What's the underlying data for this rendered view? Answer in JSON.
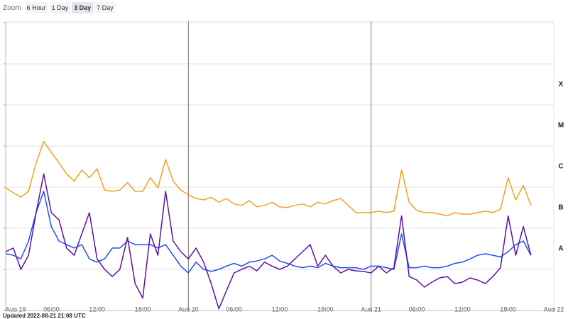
{
  "zoom": {
    "label": "Zoom",
    "options": [
      "6 Hour",
      "1 Day",
      "3 Day",
      "7 Day"
    ],
    "selected_index": 2
  },
  "chart_data": {
    "type": "line",
    "log_scale": true,
    "grid": true,
    "xlim": [
      0,
      72
    ],
    "xticks": [
      {
        "value": 0,
        "label": "Aug 19"
      },
      {
        "value": 6,
        "label": "06:00"
      },
      {
        "value": 12,
        "label": "12:00"
      },
      {
        "value": 18,
        "label": "18:00"
      },
      {
        "value": 24,
        "label": "Aug 20"
      },
      {
        "value": 30,
        "label": "06:00"
      },
      {
        "value": 36,
        "label": "12:00"
      },
      {
        "value": 42,
        "label": "18:00"
      },
      {
        "value": 48,
        "label": "Aug 21"
      },
      {
        "value": 54,
        "label": "06:00"
      },
      {
        "value": 60,
        "label": "12:00"
      },
      {
        "value": 66,
        "label": "18:00"
      },
      {
        "value": 72,
        "label": "Aug 22"
      }
    ],
    "ylim": [
      1e-09,
      0.01
    ],
    "yticks": [
      1e-09,
      1e-08,
      1e-07,
      1e-06,
      1e-05,
      0.0001,
      0.001,
      0.01
    ],
    "class_labels": [
      {
        "value": 0.0001,
        "label": "X"
      },
      {
        "value": 1e-05,
        "label": "M"
      },
      {
        "value": 1e-06,
        "label": "C"
      },
      {
        "value": 1e-07,
        "label": "B"
      },
      {
        "value": 1e-08,
        "label": "A"
      }
    ],
    "x": [
      0,
      1,
      2,
      3,
      4,
      5,
      6,
      7,
      8,
      9,
      10,
      11,
      12,
      13,
      14,
      15,
      16,
      17,
      18,
      19,
      20,
      21,
      22,
      23,
      24,
      25,
      26,
      27,
      28,
      29,
      30,
      31,
      32,
      33,
      34,
      35,
      36,
      37,
      38,
      39,
      40,
      41,
      42,
      43,
      44,
      45,
      46,
      47,
      48,
      49,
      50,
      51,
      52,
      53,
      54,
      55,
      56,
      57,
      58,
      59,
      60,
      61,
      62,
      63,
      64,
      65,
      66,
      67,
      68,
      69
    ],
    "series": [
      {
        "color": "#f7a01e",
        "values": [
          9.6e-07,
          7.3e-07,
          5.7e-07,
          7.9e-07,
          3.9e-06,
          1.3e-05,
          7e-06,
          3.9e-06,
          2.1e-06,
          1.4e-06,
          2.6e-06,
          1.7e-06,
          2.8e-06,
          8.5e-07,
          7.9e-07,
          8.5e-07,
          1.3e-06,
          7.9e-07,
          7.9e-07,
          1.7e-06,
          9.6e-07,
          4.7e-06,
          1.4e-06,
          8.5e-07,
          6.5e-07,
          5.3e-07,
          4.9e-07,
          5.7e-07,
          4.3e-07,
          5.3e-07,
          3.9e-07,
          3.6e-07,
          4.7e-07,
          3.3e-07,
          3.6e-07,
          4.3e-07,
          3.3e-07,
          3.2e-07,
          3.6e-07,
          3.9e-07,
          3.3e-07,
          4.3e-07,
          3.9e-07,
          4.7e-07,
          5.3e-07,
          3.6e-07,
          2.4e-07,
          2.4e-07,
          2.4e-07,
          2.6e-07,
          2.4e-07,
          2.6e-07,
          2.6e-06,
          4.3e-07,
          2.7e-07,
          2.4e-07,
          2.4e-07,
          2.2e-07,
          2e-07,
          2.4e-07,
          2.2e-07,
          2.2e-07,
          2.4e-07,
          2.6e-07,
          2.4e-07,
          2.9e-07,
          1.7e-06,
          4.9e-07,
          1.1e-06,
          3.6e-07
        ]
      },
      {
        "color": "#1f4ff0",
        "values": [
          2.4e-08,
          2.2e-08,
          1.8e-08,
          4.9e-08,
          2.4e-07,
          7.9e-07,
          1.1e-07,
          4.9e-08,
          4e-08,
          3.3e-08,
          4e-08,
          1.8e-08,
          1.5e-08,
          1.8e-08,
          3.3e-08,
          3.3e-08,
          4.9e-08,
          4e-08,
          4e-08,
          4e-08,
          3.3e-08,
          4e-08,
          2.2e-08,
          1.2e-08,
          8.2e-09,
          1.5e-08,
          1e-08,
          8.9e-09,
          1e-08,
          1.2e-08,
          1.4e-08,
          1.2e-08,
          1.5e-08,
          1.6e-08,
          1.8e-08,
          2.2e-08,
          1.6e-08,
          1.4e-08,
          1.2e-08,
          1.1e-08,
          1.2e-08,
          1.1e-08,
          1.4e-08,
          1.2e-08,
          1.1e-08,
          1.1e-08,
          1.1e-08,
          1e-08,
          1.2e-08,
          1.2e-08,
          1.1e-08,
          1e-08,
          7.3e-08,
          1.1e-08,
          1.1e-08,
          1.2e-08,
          1.1e-08,
          1.1e-08,
          1.2e-08,
          1.4e-08,
          1.5e-08,
          1.8e-08,
          2.2e-08,
          2.4e-08,
          2.2e-08,
          2e-08,
          2.7e-08,
          4e-08,
          4.9e-08,
          2.2e-08
        ]
      },
      {
        "color": "#5b12a8",
        "values": [
          2.7e-08,
          3.3e-08,
          1e-08,
          2.2e-08,
          2.4e-07,
          2.1e-06,
          2.4e-07,
          1.6e-07,
          3.3e-08,
          2.2e-08,
          7.3e-08,
          2.4e-07,
          1.8e-08,
          1e-08,
          6.7e-09,
          1e-08,
          6e-08,
          4.5e-09,
          2e-09,
          7.3e-08,
          2.2e-08,
          7.9e-07,
          4.9e-08,
          2.7e-08,
          1.8e-08,
          3.3e-08,
          1.5e-08,
          4.5e-09,
          1.1e-09,
          3e-09,
          8.2e-09,
          1e-08,
          1.2e-08,
          9.2e-09,
          1.5e-08,
          1.2e-08,
          1e-08,
          1.2e-08,
          1.8e-08,
          2.7e-08,
          4e-08,
          1.2e-08,
          2.2e-08,
          1.2e-08,
          8.2e-09,
          1e-08,
          9.2e-09,
          8.9e-09,
          8.2e-09,
          1.2e-08,
          8.2e-09,
          1.1e-08,
          2e-07,
          6.7e-09,
          5.5e-09,
          3.7e-09,
          4.9e-09,
          6.2e-09,
          6.7e-09,
          4.5e-09,
          4.9e-09,
          6.2e-09,
          5.5e-09,
          4.5e-09,
          6.7e-09,
          1.1e-08,
          2e-07,
          2.2e-08,
          1.1e-07,
          2.2e-08
        ]
      }
    ]
  },
  "footer": "Updated 2022-08-21 21:08 UTC"
}
